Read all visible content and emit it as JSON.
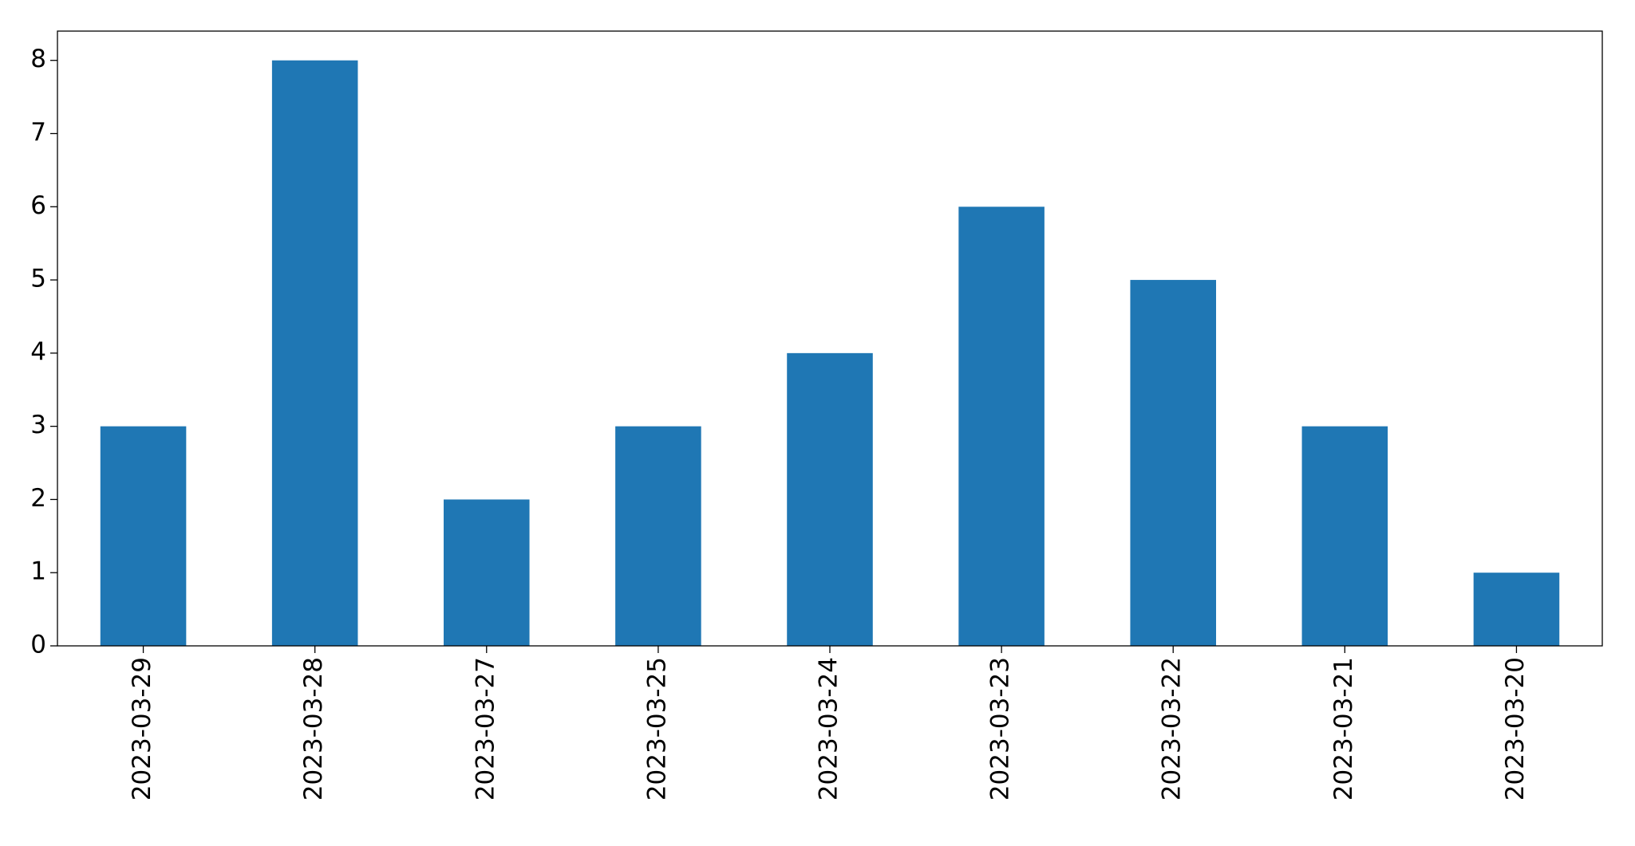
{
  "chart_data": {
    "type": "bar",
    "categories": [
      "2023-03-29",
      "2023-03-28",
      "2023-03-27",
      "2023-03-25",
      "2023-03-24",
      "2023-03-23",
      "2023-03-22",
      "2023-03-21",
      "2023-03-20"
    ],
    "values": [
      3,
      8,
      2,
      3,
      4,
      6,
      5,
      3,
      1
    ],
    "color": "#1f77b4",
    "ylim": [
      0,
      8.4
    ],
    "yticks": [
      0,
      1,
      2,
      3,
      4,
      5,
      6,
      7,
      8
    ],
    "grid": false
  }
}
